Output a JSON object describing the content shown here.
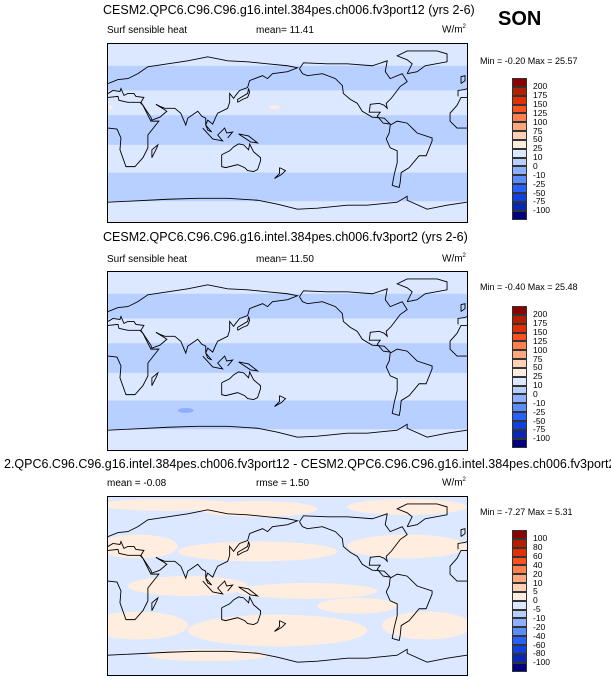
{
  "season": "SON",
  "units": "W/m",
  "units_sup": "2",
  "colors": {
    "abs": [
      "#8b0000",
      "#b22000",
      "#e03000",
      "#ff5020",
      "#ff7f50",
      "#ffa880",
      "#ffd0b8",
      "#ffede0",
      "#dce8ff",
      "#b8d0ff",
      "#8cb0ff",
      "#5a8cff",
      "#2860ff",
      "#1040e0",
      "#0828b0",
      "#000080"
    ],
    "map_light": "#dce8ff",
    "map_mid": "#b8d0ff",
    "map_dark": "#8cb0ff",
    "map_peach": "#ffede0"
  },
  "panels": [
    {
      "title": "CESM2.QPC6.C96.C96.g16.intel.384pes.ch006.fv3port12 (yrs 2-6)",
      "variable": "Surf sensible heat",
      "stat": "mean=  11.41",
      "minmax": "Min =  -0.20 Max =  25.57",
      "levels": [
        "200",
        "175",
        "150",
        "125",
        "100",
        "75",
        "50",
        "25",
        "10",
        "0",
        "-10",
        "-25",
        "-50",
        "-75",
        "-100"
      ]
    },
    {
      "title": "CESM2.QPC6.C96.C96.g16.intel.384pes.ch006.fv3port2 (yrs 2-6)",
      "variable": "Surf sensible heat",
      "stat": "mean=  11.50",
      "minmax": "Min =  -0.40 Max =  25.48",
      "levels": [
        "200",
        "175",
        "150",
        "125",
        "100",
        "75",
        "50",
        "25",
        "10",
        "0",
        "-10",
        "-25",
        "-50",
        "-75",
        "-100"
      ]
    },
    {
      "title": "2.QPC6.C96.C96.g16.intel.384pes.ch006.fv3port12 - CESM2.QPC6.C96.C96.g16.intel.384pes.ch006.fv3port2",
      "variable": "mean =  -0.08",
      "stat": "rmse =  1.50",
      "minmax": "Min =  -7.27 Max =   5.31",
      "levels": [
        "100",
        "80",
        "60",
        "40",
        "20",
        "10",
        "5",
        "0",
        "-5",
        "-10",
        "-20",
        "-40",
        "-60",
        "-80",
        "-100"
      ]
    }
  ]
}
